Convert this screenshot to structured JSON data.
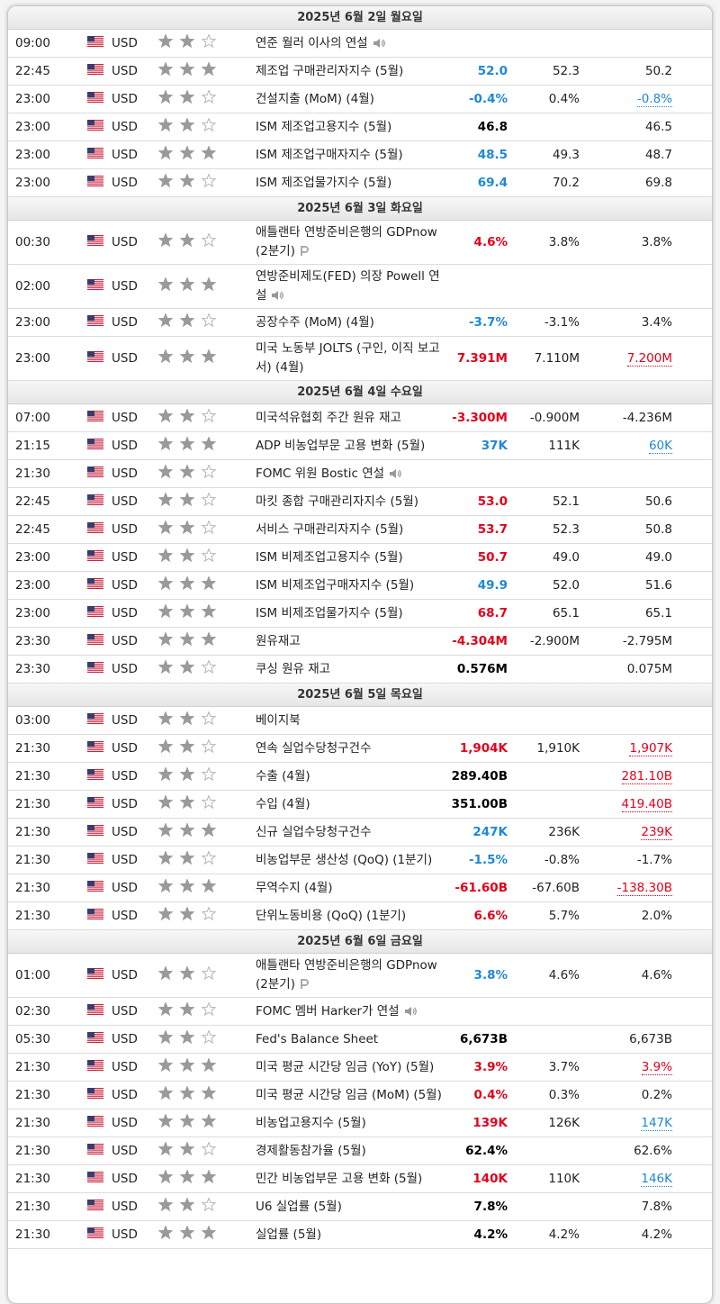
{
  "days": [
    {
      "date": "2025년 6월 2일 월요일",
      "events": [
        {
          "time": "09:00",
          "currency": "USD",
          "importance": 2,
          "event": "연준 월러 이사의 연설",
          "speech": true
        },
        {
          "time": "22:45",
          "currency": "USD",
          "importance": 3,
          "event": "제조업 구매관리자지수 (5월)",
          "actual": "52.0",
          "actual_color": "#1e88d6",
          "forecast": "52.3",
          "previous": "50.2"
        },
        {
          "time": "23:00",
          "currency": "USD",
          "importance": 2,
          "event": "건설지출 (MoM) (4월)",
          "actual": "-0.4%",
          "actual_color": "#1e88d6",
          "forecast": "0.4%",
          "previous": "-0.8%",
          "previous_color": "#1e88d6"
        },
        {
          "time": "23:00",
          "currency": "USD",
          "importance": 2,
          "event": "ISM 제조업고용지수 (5월)",
          "actual": "46.8",
          "actual_color": "#000000",
          "previous": "46.5"
        },
        {
          "time": "23:00",
          "currency": "USD",
          "importance": 3,
          "event": "ISM 제조업구매자지수 (5월)",
          "actual": "48.5",
          "actual_color": "#1e88d6",
          "forecast": "49.3",
          "previous": "48.7"
        },
        {
          "time": "23:00",
          "currency": "USD",
          "importance": 2,
          "event": "ISM 제조업물가지수 (5월)",
          "actual": "69.4",
          "actual_color": "#1e88d6",
          "forecast": "70.2",
          "previous": "69.8"
        }
      ]
    },
    {
      "date": "2025년 6월 3일 화요일",
      "events": [
        {
          "time": "00:30",
          "currency": "USD",
          "importance": 2,
          "event": "애틀랜타 연방준비은행의 GDPnow (2분기)",
          "preliminary": true,
          "actual": "4.6%",
          "actual_color": "#e3001b",
          "forecast": "3.8%",
          "previous": "3.8%"
        },
        {
          "time": "02:00",
          "currency": "USD",
          "importance": 3,
          "event": "연방준비제도(FED) 의장 Powell 연설",
          "speech": true
        },
        {
          "time": "23:00",
          "currency": "USD",
          "importance": 2,
          "event": "공장수주 (MoM) (4월)",
          "actual": "-3.7%",
          "actual_color": "#1e88d6",
          "forecast": "-3.1%",
          "previous": "3.4%"
        },
        {
          "time": "23:00",
          "currency": "USD",
          "importance": 3,
          "event": "미국 노동부 JOLTS (구인, 이직 보고서) (4월)",
          "actual": "7.391M",
          "actual_color": "#e3001b",
          "forecast": "7.110M",
          "previous": "7.200M",
          "previous_color": "#e3001b"
        }
      ]
    },
    {
      "date": "2025년 6월 4일 수요일",
      "events": [
        {
          "time": "07:00",
          "currency": "USD",
          "importance": 2,
          "event": "미국석유협회 주간 원유 재고",
          "actual": "-3.300M",
          "actual_color": "#e3001b",
          "forecast": "-0.900M",
          "previous": "-4.236M"
        },
        {
          "time": "21:15",
          "currency": "USD",
          "importance": 3,
          "event": "ADP 비농업부문 고용 변화 (5월)",
          "actual": "37K",
          "actual_color": "#1e88d6",
          "forecast": "111K",
          "previous": "60K",
          "previous_color": "#1e88d6"
        },
        {
          "time": "21:30",
          "currency": "USD",
          "importance": 2,
          "event": "FOMC 위원 Bostic 연설",
          "speech": true
        },
        {
          "time": "22:45",
          "currency": "USD",
          "importance": 2,
          "event": "마킷 종합 구매관리자지수 (5월)",
          "actual": "53.0",
          "actual_color": "#e3001b",
          "forecast": "52.1",
          "previous": "50.6"
        },
        {
          "time": "22:45",
          "currency": "USD",
          "importance": 2,
          "event": "서비스 구매관리자지수 (5월)",
          "actual": "53.7",
          "actual_color": "#e3001b",
          "forecast": "52.3",
          "previous": "50.8"
        },
        {
          "time": "23:00",
          "currency": "USD",
          "importance": 2,
          "event": "ISM 비제조업고용지수 (5월)",
          "actual": "50.7",
          "actual_color": "#e3001b",
          "forecast": "49.0",
          "previous": "49.0"
        },
        {
          "time": "23:00",
          "currency": "USD",
          "importance": 3,
          "event": "ISM 비제조업구매자지수 (5월)",
          "actual": "49.9",
          "actual_color": "#1e88d6",
          "forecast": "52.0",
          "previous": "51.6"
        },
        {
          "time": "23:00",
          "currency": "USD",
          "importance": 3,
          "event": "ISM 비제조업물가지수 (5월)",
          "actual": "68.7",
          "actual_color": "#e3001b",
          "forecast": "65.1",
          "previous": "65.1"
        },
        {
          "time": "23:30",
          "currency": "USD",
          "importance": 3,
          "event": "원유재고",
          "actual": "-4.304M",
          "actual_color": "#e3001b",
          "forecast": "-2.900M",
          "previous": "-2.795M"
        },
        {
          "time": "23:30",
          "currency": "USD",
          "importance": 2,
          "event": "쿠싱 원유 재고",
          "actual": "0.576M",
          "actual_color": "#000000",
          "previous": "0.075M"
        }
      ]
    },
    {
      "date": "2025년 6월 5일 목요일",
      "events": [
        {
          "time": "03:00",
          "currency": "USD",
          "importance": 2,
          "event": "베이지북"
        },
        {
          "time": "21:30",
          "currency": "USD",
          "importance": 2,
          "event": "연속 실업수당청구건수",
          "actual": "1,904K",
          "actual_color": "#e3001b",
          "forecast": "1,910K",
          "previous": "1,907K",
          "previous_color": "#e3001b"
        },
        {
          "time": "21:30",
          "currency": "USD",
          "importance": 2,
          "event": "수출 (4월)",
          "actual": "289.40B",
          "actual_color": "#000000",
          "previous": "281.10B",
          "previous_color": "#e3001b"
        },
        {
          "time": "21:30",
          "currency": "USD",
          "importance": 2,
          "event": "수입 (4월)",
          "actual": "351.00B",
          "actual_color": "#000000",
          "previous": "419.40B",
          "previous_color": "#e3001b"
        },
        {
          "time": "21:30",
          "currency": "USD",
          "importance": 3,
          "event": "신규 실업수당청구건수",
          "actual": "247K",
          "actual_color": "#1e88d6",
          "forecast": "236K",
          "previous": "239K",
          "previous_color": "#e3001b"
        },
        {
          "time": "21:30",
          "currency": "USD",
          "importance": 2,
          "event": "비농업부문 생산성 (QoQ) (1분기)",
          "actual": "-1.5%",
          "actual_color": "#1e88d6",
          "forecast": "-0.8%",
          "previous": "-1.7%"
        },
        {
          "time": "21:30",
          "currency": "USD",
          "importance": 3,
          "event": "무역수지 (4월)",
          "actual": "-61.60B",
          "actual_color": "#e3001b",
          "forecast": "-67.60B",
          "previous": "-138.30B",
          "previous_color": "#e3001b"
        },
        {
          "time": "21:30",
          "currency": "USD",
          "importance": 2,
          "event": "단위노동비용 (QoQ) (1분기)",
          "actual": "6.6%",
          "actual_color": "#e3001b",
          "forecast": "5.7%",
          "previous": "2.0%"
        }
      ]
    },
    {
      "date": "2025년 6월 6일 금요일",
      "events": [
        {
          "time": "01:00",
          "currency": "USD",
          "importance": 2,
          "event": "애틀랜타 연방준비은행의 GDPnow (2분기)",
          "preliminary": true,
          "actual": "3.8%",
          "actual_color": "#1e88d6",
          "forecast": "4.6%",
          "previous": "4.6%"
        },
        {
          "time": "02:30",
          "currency": "USD",
          "importance": 2,
          "event": "FOMC 멤버 Harker가 연설",
          "speech": true
        },
        {
          "time": "05:30",
          "currency": "USD",
          "importance": 2,
          "event": "Fed's Balance Sheet",
          "actual": "6,673B",
          "actual_color": "#000000",
          "previous": "6,673B"
        },
        {
          "time": "21:30",
          "currency": "USD",
          "importance": 3,
          "event": "미국 평균 시간당 임금 (YoY) (5월)",
          "actual": "3.9%",
          "actual_color": "#e3001b",
          "forecast": "3.7%",
          "previous": "3.9%",
          "previous_color": "#e3001b"
        },
        {
          "time": "21:30",
          "currency": "USD",
          "importance": 3,
          "event": "미국 평균 시간당 임금 (MoM) (5월)",
          "actual": "0.4%",
          "actual_color": "#e3001b",
          "forecast": "0.3%",
          "previous": "0.2%"
        },
        {
          "time": "21:30",
          "currency": "USD",
          "importance": 3,
          "event": "비농업고용지수 (5월)",
          "actual": "139K",
          "actual_color": "#e3001b",
          "forecast": "126K",
          "previous": "147K",
          "previous_color": "#1e88d6"
        },
        {
          "time": "21:30",
          "currency": "USD",
          "importance": 2,
          "event": "경제활동참가율 (5월)",
          "actual": "62.4%",
          "actual_color": "#000000",
          "previous": "62.6%"
        },
        {
          "time": "21:30",
          "currency": "USD",
          "importance": 3,
          "event": "민간 비농업부문 고용 변화 (5월)",
          "actual": "140K",
          "actual_color": "#e3001b",
          "forecast": "110K",
          "previous": "146K",
          "previous_color": "#1e88d6"
        },
        {
          "time": "21:30",
          "currency": "USD",
          "importance": 2,
          "event": "U6 실업률 (5월)",
          "actual": "7.8%",
          "actual_color": "#000000",
          "previous": "7.8%"
        },
        {
          "time": "21:30",
          "currency": "USD",
          "importance": 3,
          "event": "실업률 (5월)",
          "actual": "4.2%",
          "actual_color": "#000000",
          "forecast": "4.2%",
          "previous": "4.2%"
        }
      ]
    }
  ]
}
